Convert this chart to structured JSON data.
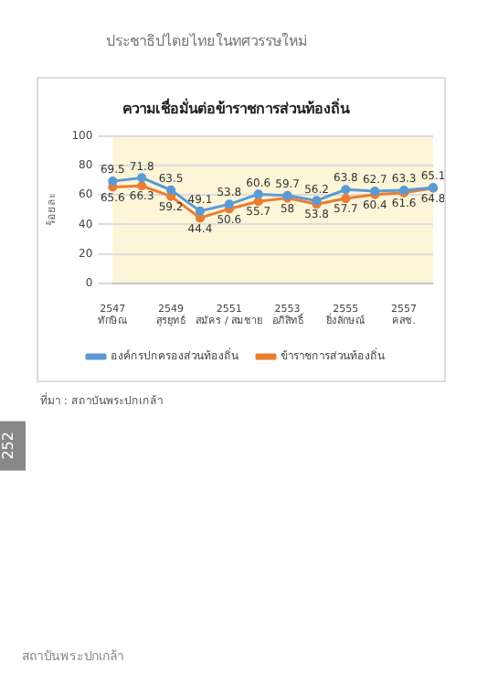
{
  "chart_data": {
    "type": "line",
    "title": "ความเชื่อมั่นต่อข้าราชการส่วนท้องถิ่น",
    "ylabel": "ร้อยละ",
    "categories": [
      "2547\nทักษิณ",
      null,
      "2549\nสุรยุทธ์",
      null,
      "2551\nสมัคร / สมชาย",
      null,
      "2553\nอภิสิทธิ์",
      null,
      "2555\nยิ่งลักษณ์",
      null,
      "2557\nคสช.",
      null
    ],
    "series": [
      {
        "name": "องค์กรปกครองส่วนท้องถิ่น",
        "color": "#5b9bd5",
        "values": [
          69.5,
          71.8,
          63.5,
          49.1,
          53.8,
          60.6,
          59.7,
          56.2,
          63.8,
          62.7,
          63.3,
          65.1
        ]
      },
      {
        "name": "ข้าราชการส่วนท้องถิ่น",
        "color": "#ed7d31",
        "values": [
          65.6,
          66.3,
          59.2,
          44.4,
          50.6,
          55.7,
          58,
          53.8,
          57.7,
          60.4,
          61.6,
          64.8
        ]
      }
    ],
    "ylim": [
      0,
      100
    ],
    "yticks": [
      0,
      20,
      40,
      60,
      80,
      100
    ],
    "grid": "y",
    "legend": "bottom",
    "marker": "circle",
    "data_labels": true,
    "annotations": [
      "ประชาธิปไตยไทยในทศวรรษใหม่",
      "ที่มา : สถาบันพระปกเกล้า",
      "252",
      "สถาบันพระปกเกล้า"
    ]
  }
}
